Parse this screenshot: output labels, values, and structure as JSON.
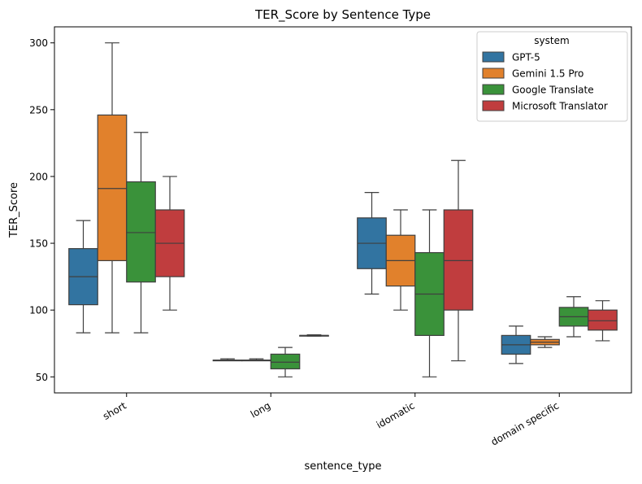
{
  "chart_data": {
    "type": "box",
    "title": "TER_Score by Sentence Type",
    "xlabel": "sentence_type",
    "ylabel": "TER_Score",
    "ylim": [
      38,
      312
    ],
    "yticks": [
      50,
      100,
      150,
      200,
      250,
      300
    ],
    "categories": [
      "short",
      "long",
      "idomatic",
      "domain specific"
    ],
    "legend": {
      "title": "system",
      "placement": "top-right"
    },
    "series": [
      {
        "name": "GPT-5",
        "color": "#3274a1",
        "boxes": [
          {
            "min": 83,
            "q1": 104,
            "median": 125,
            "q3": 146,
            "max": 167
          },
          {
            "min": 62.5,
            "q1": 62.5,
            "median": 62.5,
            "q3": 62.5,
            "max": 63.5
          },
          {
            "min": 112,
            "q1": 131,
            "median": 150,
            "q3": 169,
            "max": 188
          },
          {
            "min": 60,
            "q1": 67,
            "median": 74,
            "q3": 81,
            "max": 88
          }
        ]
      },
      {
        "name": "Gemini 1.5 Pro",
        "color": "#e1812c",
        "boxes": [
          {
            "min": 83,
            "q1": 137,
            "median": 191,
            "q3": 246,
            "max": 300
          },
          {
            "min": 62.5,
            "q1": 62.5,
            "median": 62.5,
            "q3": 62.5,
            "max": 63.5
          },
          {
            "min": 100,
            "q1": 118,
            "median": 137,
            "q3": 156,
            "max": 175
          },
          {
            "min": 72,
            "q1": 74,
            "median": 76,
            "q3": 78,
            "max": 80
          }
        ]
      },
      {
        "name": "Google Translate",
        "color": "#3a923a",
        "boxes": [
          {
            "min": 83,
            "q1": 121,
            "median": 158,
            "q3": 196,
            "max": 233
          },
          {
            "min": 50,
            "q1": 56,
            "median": 61,
            "q3": 67,
            "max": 72
          },
          {
            "min": 50,
            "q1": 81,
            "median": 112,
            "q3": 143,
            "max": 175
          },
          {
            "min": 80,
            "q1": 88,
            "median": 95,
            "q3": 102,
            "max": 110
          }
        ]
      },
      {
        "name": "Microsoft Translator",
        "color": "#c03d3e",
        "boxes": [
          {
            "min": 100,
            "q1": 125,
            "median": 150,
            "q3": 175,
            "max": 200
          },
          {
            "min": 80.5,
            "q1": 80.5,
            "median": 81,
            "q3": 81,
            "max": 81.5
          },
          {
            "min": 62,
            "q1": 100,
            "median": 137,
            "q3": 175,
            "max": 212
          },
          {
            "min": 77,
            "q1": 85,
            "median": 92,
            "q3": 100,
            "max": 107
          }
        ]
      }
    ]
  }
}
